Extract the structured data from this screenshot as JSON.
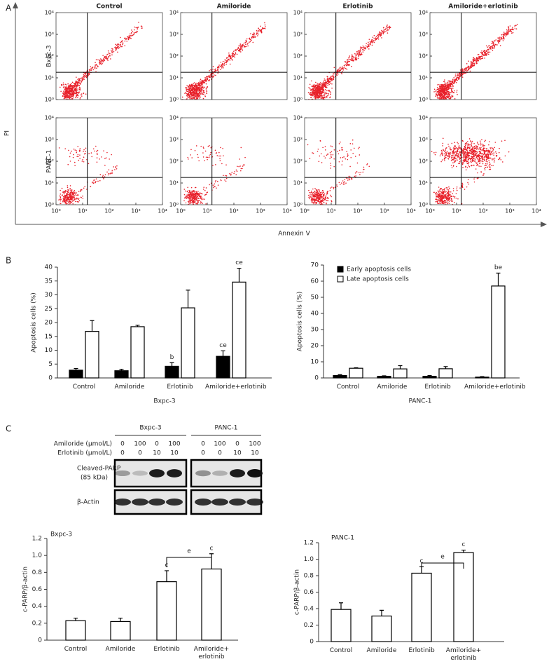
{
  "panel_labels": [
    "A",
    "B",
    "C"
  ],
  "chart_data": [
    {
      "type": "scatter",
      "y_label": "PI",
      "x_label": "Annexin V",
      "columns": [
        "Control",
        "Amiloride",
        "Erlotinib",
        "Amiloride+erlotinib"
      ],
      "rows": [
        "Bxpc-3",
        "PANC-1"
      ],
      "log_scale": true,
      "color": "#e8202a",
      "xlim": [
        1,
        10000
      ],
      "ylim": [
        1,
        10000
      ],
      "xticks": [
        {
          "value": 1,
          "label": "10⁰"
        },
        {
          "value": 10,
          "label": "10¹"
        },
        {
          "value": 100,
          "label": "10²"
        },
        {
          "value": 1000,
          "label": "10³"
        },
        {
          "value": 10000,
          "label": "10⁴"
        }
      ],
      "yticks": [
        {
          "value": 1,
          "label": "10⁰"
        },
        {
          "value": 10,
          "label": "10¹"
        },
        {
          "value": 100,
          "label": "10²"
        },
        {
          "value": 1000,
          "label": "10³"
        },
        {
          "value": 10000,
          "label": "10⁴"
        }
      ],
      "gate_x": 15,
      "gate_y": 18
    },
    {
      "type": "bar",
      "x_label": "Bxpc-3",
      "y_label": "Apoptosis cells (%)",
      "categories": [
        "Control",
        "Amiloride",
        "Erlotinib",
        "Amiloride+erlotinib"
      ],
      "ylim": [
        0,
        40
      ],
      "yticks": [
        0,
        5,
        10,
        15,
        20,
        25,
        30,
        35,
        40
      ],
      "series": [
        {
          "color": "#000000",
          "values": [
            2.8,
            2.6,
            4.2,
            7.8
          ],
          "errors": [
            0.6,
            0.5,
            1.3,
            2.0
          ],
          "annotations": [
            null,
            null,
            "b",
            "ce"
          ]
        },
        {
          "color": "#ffffff",
          "values": [
            16.8,
            18.5,
            25.3,
            34.6
          ],
          "errors": [
            3.9,
            0.5,
            6.4,
            5.0
          ],
          "annotations": [
            null,
            null,
            null,
            "ce"
          ]
        }
      ]
    },
    {
      "type": "bar",
      "x_label": "PANC-1",
      "y_label": "Apoptosis cells (%)",
      "legend": "top-left",
      "categories": [
        "Control",
        "Amiloride",
        "Erlotinib",
        "Amiloride+erlotinib"
      ],
      "ylim": [
        0,
        70
      ],
      "yticks": [
        0,
        10,
        20,
        30,
        40,
        50,
        60,
        70
      ],
      "series": [
        {
          "name": "Early apoptosis cells",
          "color": "#000000",
          "values": [
            1.5,
            1.0,
            1.0,
            0.5
          ],
          "errors": [
            0.5,
            0.3,
            0.5,
            0.3
          ],
          "annotations": [
            null,
            null,
            null,
            null
          ]
        },
        {
          "name": "Late apoptosis cells",
          "color": "#ffffff",
          "values": [
            6.0,
            5.6,
            5.7,
            57.0
          ],
          "errors": [
            0.3,
            2.0,
            1.3,
            8.0
          ],
          "annotations": [
            null,
            null,
            null,
            "be"
          ]
        }
      ]
    },
    {
      "type": "bar",
      "title": "Bxpc-3",
      "y_label": "c-PARP/β-actin",
      "categories": [
        "Control",
        "Amiloride",
        "Erlotinib",
        "Amiloride+ erlotinib"
      ],
      "ylim": [
        0,
        1.2
      ],
      "yticks": [
        0,
        0.2,
        0.4,
        0.6,
        0.8,
        {
          "value": 1,
          "label": "1.0"
        },
        1.2
      ],
      "series": [
        {
          "color": "#ffffff",
          "values": [
            0.23,
            0.22,
            0.69,
            0.84
          ],
          "errors": [
            0.03,
            0.04,
            0.13,
            0.18
          ],
          "annotations": [
            null,
            null,
            "c",
            "c"
          ]
        }
      ],
      "bracket": {
        "label": "e",
        "from": 2,
        "to": 3
      }
    },
    {
      "type": "bar",
      "title": "PANC-1",
      "y_label": "c-PARP/β-actin",
      "categories": [
        "Control",
        "Amiloride",
        "Erlotinib",
        "Amiloride+ erlotinib"
      ],
      "ylim": [
        0,
        1.2
      ],
      "yticks": [
        0,
        0.2,
        0.4,
        0.6,
        0.8,
        {
          "value": 1,
          "label": "1.0"
        },
        1.2
      ],
      "series": [
        {
          "color": "#ffffff",
          "values": [
            0.39,
            0.31,
            0.83,
            1.08
          ],
          "errors": [
            0.08,
            0.07,
            0.08,
            0.03
          ],
          "annotations": [
            null,
            null,
            "c",
            "c"
          ]
        }
      ],
      "bracket": {
        "label": "e",
        "from": 2,
        "to": 3
      }
    }
  ],
  "blot": {
    "cell_lines": [
      "Bxpc-3",
      "PANC-1"
    ],
    "treatments": [
      "Amiloride (μmol/L)",
      "Erlotinib (μmol/L)"
    ],
    "doses": [
      [
        0,
        100,
        0,
        100
      ],
      [
        0,
        0,
        10,
        10
      ]
    ],
    "bands": [
      [
        "Cleaved-PARP",
        "(85 kDa)"
      ],
      [
        "β-Actin"
      ]
    ]
  }
}
